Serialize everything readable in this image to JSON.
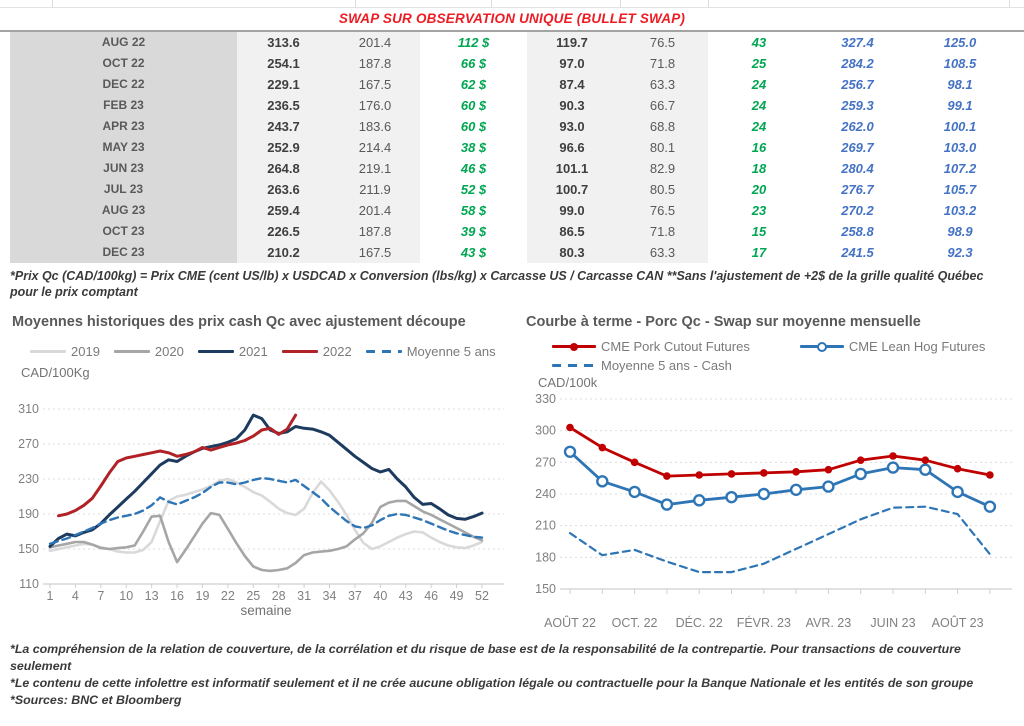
{
  "table": {
    "title": "SWAP SUR OBSERVATION UNIQUE (BULLET SWAP)",
    "title_color": "#ed1c24",
    "value_colors": {
      "green": "#00a651",
      "blue": "#4472c4"
    },
    "rows": [
      [
        "AUG 22",
        "313.6",
        "201.4",
        "112 $",
        "119.7",
        "76.5",
        "43",
        "327.4",
        "125.0"
      ],
      [
        "OCT 22",
        "254.1",
        "187.8",
        "66 $",
        "97.0",
        "71.8",
        "25",
        "284.2",
        "108.5"
      ],
      [
        "DEC 22",
        "229.1",
        "167.5",
        "62 $",
        "87.4",
        "63.3",
        "24",
        "256.7",
        "98.1"
      ],
      [
        "FEB 23",
        "236.5",
        "176.0",
        "60 $",
        "90.3",
        "66.7",
        "24",
        "259.3",
        "99.1"
      ],
      [
        "APR 23",
        "243.7",
        "183.6",
        "60 $",
        "93.0",
        "68.8",
        "24",
        "262.0",
        "100.1"
      ],
      [
        "MAY 23",
        "252.9",
        "214.4",
        "38 $",
        "96.6",
        "80.1",
        "16",
        "269.7",
        "103.0"
      ],
      [
        "JUN 23",
        "264.8",
        "219.1",
        "46 $",
        "101.1",
        "82.9",
        "18",
        "280.4",
        "107.2"
      ],
      [
        "JUL 23",
        "263.6",
        "211.9",
        "52 $",
        "100.7",
        "80.5",
        "20",
        "276.7",
        "105.7"
      ],
      [
        "AUG 23",
        "259.4",
        "201.4",
        "58 $",
        "99.0",
        "76.5",
        "23",
        "270.2",
        "103.2"
      ],
      [
        "OCT 23",
        "226.5",
        "187.8",
        "39 $",
        "86.5",
        "71.8",
        "15",
        "258.8",
        "98.9"
      ],
      [
        "DEC 23",
        "210.2",
        "167.5",
        "43 $",
        "80.3",
        "63.3",
        "17",
        "241.5",
        "92.3"
      ]
    ],
    "footnote": "*Prix Qc (CAD/100kg) = Prix CME (cent US/lb) x USDCAD x Conversion (lbs/kg) x Carcasse US / Carcasse CAN **Sans l'ajustement de +2$ de la grille qualité Québec pour le prix comptant"
  },
  "chart_data": [
    {
      "type": "line",
      "title": "Moyennes historiques des prix cash Qc avec ajustement découpe",
      "ylabel": "CAD/100Kg",
      "xlabel": "semaine",
      "ylim": [
        110,
        310
      ],
      "yticks": [
        110,
        150,
        190,
        230,
        270,
        310
      ],
      "x_ticks": [
        1,
        4,
        7,
        10,
        13,
        16,
        19,
        22,
        25,
        28,
        31,
        34,
        37,
        40,
        43,
        46,
        49,
        52
      ],
      "x_range": [
        1,
        52
      ],
      "grid": true,
      "legend_position": "top",
      "series": [
        {
          "name": "2019",
          "color": "#d9d9d9",
          "width": 2.6,
          "x_start": 1,
          "values": [
            148,
            150,
            152,
            154,
            156,
            155,
            152,
            150,
            147,
            146,
            146,
            149,
            158,
            182,
            205,
            210,
            212,
            215,
            218,
            222,
            228,
            230,
            226,
            221,
            215,
            211,
            204,
            196,
            191,
            189,
            196,
            214,
            227,
            217,
            204,
            189,
            172,
            157,
            150,
            153,
            158,
            163,
            167,
            170,
            169,
            163,
            158,
            154,
            152,
            151,
            154,
            158
          ]
        },
        {
          "name": "2020",
          "color": "#a6a6a6",
          "width": 2.6,
          "x_start": 1,
          "values": [
            152,
            154,
            156,
            158,
            158,
            155,
            151,
            150,
            151,
            152,
            154,
            170,
            187,
            188,
            158,
            135,
            149,
            164,
            179,
            191,
            189,
            173,
            157,
            142,
            130,
            126,
            125,
            126,
            128,
            134,
            143,
            146,
            147,
            148,
            150,
            153,
            161,
            168,
            180,
            198,
            203,
            205,
            205,
            199,
            193,
            189,
            184,
            179,
            174,
            169,
            164,
            160
          ]
        },
        {
          "name": "2021",
          "color": "#1d3a5f",
          "width": 3,
          "x_start": 1,
          "values": [
            153,
            162,
            167,
            165,
            169,
            172,
            179,
            189,
            198,
            207,
            216,
            226,
            236,
            246,
            252,
            250,
            256,
            261,
            265,
            267,
            269,
            272,
            276,
            286,
            303,
            299,
            286,
            282,
            284,
            290,
            288,
            287,
            284,
            280,
            272,
            264,
            256,
            249,
            242,
            238,
            241,
            230,
            221,
            209,
            201,
            202,
            196,
            189,
            185,
            184,
            187,
            191
          ]
        },
        {
          "name": "2022",
          "color": "#b12227",
          "width": 3,
          "x_start": 2,
          "values": [
            188,
            190,
            194,
            200,
            208,
            222,
            237,
            250,
            254,
            256,
            258,
            260,
            262,
            260,
            256,
            258,
            261,
            266,
            263,
            266,
            269,
            271,
            274,
            279,
            286,
            288,
            281,
            287,
            303
          ]
        },
        {
          "name": "Moyenne 5 ans",
          "color": "#2e75b6",
          "width": 2.4,
          "dash": "8 5",
          "x_start": 1,
          "values": [
            156,
            159,
            162,
            166,
            170,
            174,
            179,
            183,
            186,
            188,
            190,
            194,
            200,
            209,
            204,
            201,
            205,
            209,
            214,
            221,
            226,
            226,
            224,
            226,
            229,
            231,
            230,
            228,
            226,
            229,
            222,
            215,
            208,
            198,
            190,
            182,
            176,
            174,
            177,
            183,
            188,
            190,
            189,
            186,
            183,
            179,
            175,
            171,
            168,
            166,
            164,
            163
          ]
        }
      ]
    },
    {
      "type": "line",
      "title": "Courbe à terme - Porc Qc - Swap sur moyenne mensuelle",
      "ylabel": "CAD/100k",
      "ylim": [
        150,
        330
      ],
      "yticks": [
        150,
        180,
        210,
        240,
        270,
        300,
        330
      ],
      "x_labels": [
        "AOÛT 22",
        "OCT. 22",
        "DÉC. 22",
        "FÉVR. 23",
        "AVR. 23",
        "JUIN 23",
        "AOÛT 23"
      ],
      "grid": true,
      "legend_position": "top",
      "series": [
        {
          "name": "CME Pork Cutout Futures",
          "color": "#c00000",
          "width": 2.8,
          "marker": "filled",
          "values": [
            303,
            284,
            270,
            257,
            258,
            259,
            260,
            261,
            263,
            272,
            276,
            272,
            264,
            258
          ]
        },
        {
          "name": "CME Lean Hog Futures",
          "color": "#2e75b6",
          "width": 2.8,
          "marker": "open",
          "values": [
            280,
            252,
            242,
            230,
            234,
            237,
            240,
            244,
            247,
            259,
            265,
            263,
            242,
            228
          ]
        },
        {
          "name": "Moyenne 5 ans - Cash",
          "color": "#2e75b6",
          "width": 2.2,
          "dash": "7 5",
          "values": [
            203,
            182,
            187,
            176,
            166,
            166,
            174,
            188,
            202,
            216,
            227,
            228,
            221,
            183
          ]
        }
      ]
    }
  ],
  "footer": {
    "lines": [
      "*La compréhension de la relation de couverture, de la corrélation et du risque de base est de la responsabilité de la contrepartie. Pour transactions de couverture seulement",
      "*Le contenu de cette infolettre est informatif seulement et il ne crée aucune obligation légale ou contractuelle pour la Banque Nationale et les entités de son groupe",
      "*Sources: BNC et Bloomberg"
    ]
  }
}
